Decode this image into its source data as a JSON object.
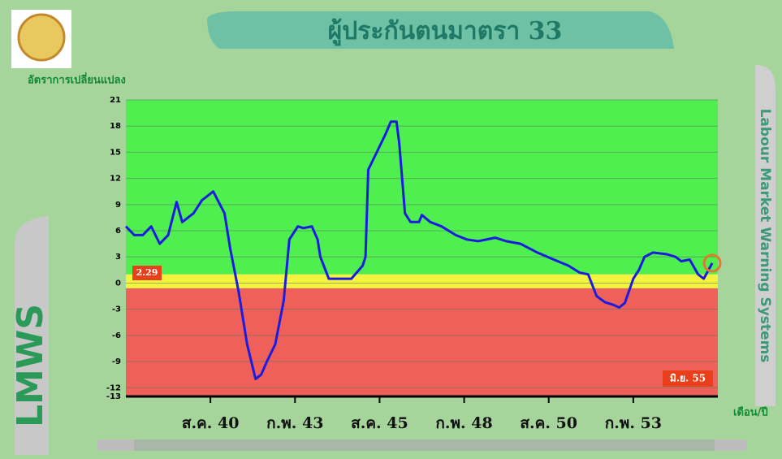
{
  "chart_data": {
    "type": "line",
    "title": "ผู้ประกันตนมาตรา 33",
    "y_label": "อัตราการเปลี่ยนแปลง",
    "x_label": "เดือน/ปี",
    "side_text": "Labour Market Warning Systems",
    "brand": "LMWS",
    "last_period": "มิ.ย. 55",
    "x": [
      0,
      3,
      6,
      9,
      12,
      15,
      18,
      20,
      22,
      24,
      27,
      31,
      35,
      37,
      40,
      43,
      46,
      48,
      50,
      53,
      56,
      58,
      61,
      63,
      66,
      68,
      69,
      72,
      76,
      80,
      84,
      85,
      86,
      89,
      92,
      94,
      96,
      97,
      99,
      101,
      104,
      105,
      108,
      112,
      117,
      121,
      125,
      131,
      135,
      140,
      146,
      151,
      157,
      161,
      164,
      167,
      170,
      173,
      175,
      177,
      180,
      182,
      184,
      187,
      192,
      195,
      197,
      200,
      203,
      205,
      208
    ],
    "series": [
      {
        "name": "ผู้ประกันตนมาตรา 33",
        "color": "#1c1ce0",
        "values": [
          6.5,
          5.5,
          5.5,
          6.5,
          4.5,
          5.5,
          9.3,
          7,
          7.5,
          8,
          9.5,
          10.5,
          8,
          4,
          -1,
          -7,
          -11,
          -10.5,
          -9,
          -7,
          -2,
          5,
          6.5,
          6.3,
          6.5,
          5,
          3,
          0.5,
          0.5,
          0.5,
          2,
          3,
          13,
          15,
          17,
          18.5,
          18.5,
          16,
          8,
          7,
          7,
          7.8,
          7,
          6.5,
          5.5,
          5,
          4.8,
          5.2,
          4.8,
          4.5,
          3.5,
          2.8,
          2,
          1.2,
          1,
          -1.5,
          -2.2,
          -2.5,
          -2.8,
          -2.3,
          0.5,
          1.5,
          3,
          3.5,
          3.3,
          3,
          2.5,
          2.7,
          1,
          0.5,
          2.29
        ]
      }
    ],
    "bands": [
      {
        "from": 1,
        "to": 21,
        "color": "#4eef4e"
      },
      {
        "from": -0.6,
        "to": 1,
        "color": "#f4f440"
      },
      {
        "from": -13,
        "to": -0.6,
        "color": "#ef605a"
      }
    ],
    "xlim": [
      0,
      210
    ],
    "xticks": [
      {
        "value": 30,
        "label": "ส.ค. 40"
      },
      {
        "value": 60,
        "label": "ก.พ. 43"
      },
      {
        "value": 90,
        "label": "ส.ค. 45"
      },
      {
        "value": 120,
        "label": "ก.พ. 48"
      },
      {
        "value": 150,
        "label": "ส.ค. 50"
      },
      {
        "value": 180,
        "label": "ก.พ. 53"
      }
    ],
    "ylim": [
      -13,
      21
    ],
    "yticks": [
      21,
      18,
      15,
      12,
      9,
      6,
      3,
      0,
      -3,
      -6,
      -9,
      -12,
      -13
    ],
    "grid": true
  }
}
